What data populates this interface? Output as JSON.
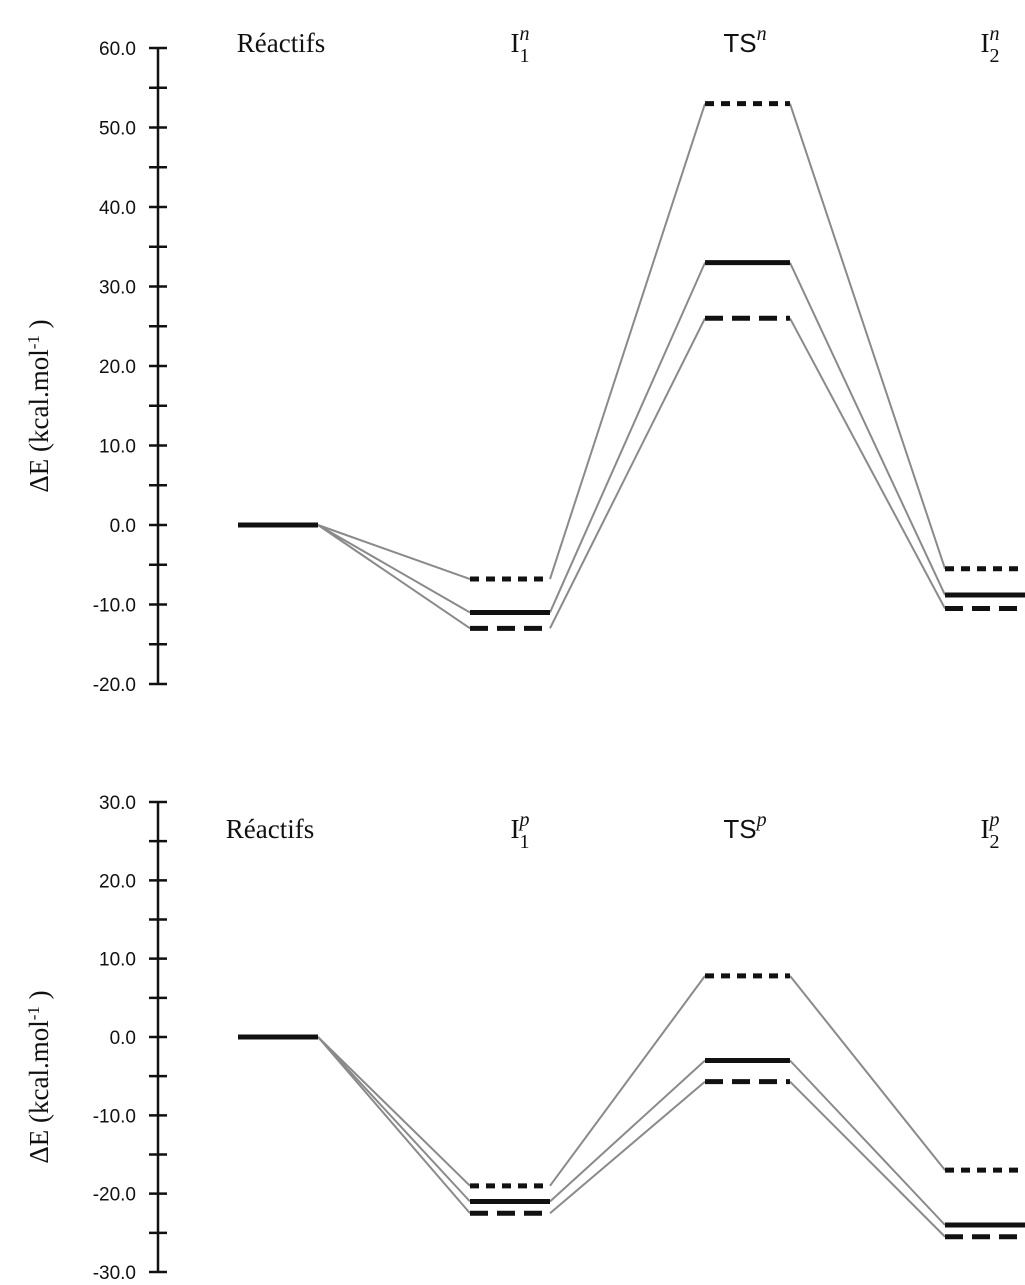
{
  "chart_data": [
    {
      "type": "energy-profile",
      "title": "",
      "ylabel": "ΔE (kcal.mol-1)",
      "ylabel_parts": {
        "delta": "Δ",
        "E": "E",
        "unit_main": "(kcal.mol",
        "unit_exp": "-1",
        "unit_close": ")"
      },
      "ylim": [
        -20,
        60
      ],
      "y_ticks": [
        "60.0",
        "50.0",
        "40.0",
        "30.0",
        "20.0",
        "10.0",
        "0.0",
        "-10.0",
        "-20.0"
      ],
      "stages": [
        {
          "name": "Réactifs",
          "parts": {
            "base": "Réactifs",
            "sup": "",
            "sub": ""
          }
        },
        {
          "name": "I1n",
          "parts": {
            "base": "I",
            "sup": "n",
            "sub": "1"
          }
        },
        {
          "name": "TSn",
          "parts": {
            "base": "TS",
            "sup": "n",
            "sub": ""
          }
        },
        {
          "name": "I2n",
          "parts": {
            "base": "I",
            "sup": "n",
            "sub": "2"
          }
        }
      ],
      "series": [
        {
          "style": "solid",
          "values": [
            0.0,
            -11.0,
            33.0,
            -8.8
          ]
        },
        {
          "style": "long-dash",
          "values": [
            0.0,
            -13.0,
            26.0,
            -10.5
          ]
        },
        {
          "style": "short-dash",
          "values": [
            0.0,
            -6.8,
            53.0,
            -5.5
          ]
        }
      ]
    },
    {
      "type": "energy-profile",
      "title": "",
      "ylabel": "ΔE (kcal.mol-1)",
      "ylabel_parts": {
        "delta": "Δ",
        "E": "E",
        "unit_main": "(kcal.mol",
        "unit_exp": "-1",
        "unit_close": ")"
      },
      "ylim": [
        -30,
        30
      ],
      "y_ticks": [
        "30.0",
        "20.0",
        "10.0",
        "0.0",
        "-10.0",
        "-20.0",
        "-30.0"
      ],
      "stages": [
        {
          "name": "Réactifs",
          "parts": {
            "base": "Réactifs",
            "sup": "",
            "sub": ""
          }
        },
        {
          "name": "I1p",
          "parts": {
            "base": "I",
            "sup": "p",
            "sub": "1"
          }
        },
        {
          "name": "TSp",
          "parts": {
            "base": "TS",
            "sup": "p",
            "sub": ""
          }
        },
        {
          "name": "I2p",
          "parts": {
            "base": "I",
            "sup": "p",
            "sub": "2"
          }
        }
      ],
      "series": [
        {
          "style": "solid",
          "values": [
            0.0,
            -21.0,
            -3.0,
            -24.0
          ]
        },
        {
          "style": "long-dash",
          "values": [
            0.0,
            -22.5,
            -5.7,
            -25.5
          ]
        },
        {
          "style": "short-dash",
          "values": [
            0.0,
            -19.0,
            7.8,
            -17.0
          ]
        }
      ]
    }
  ]
}
